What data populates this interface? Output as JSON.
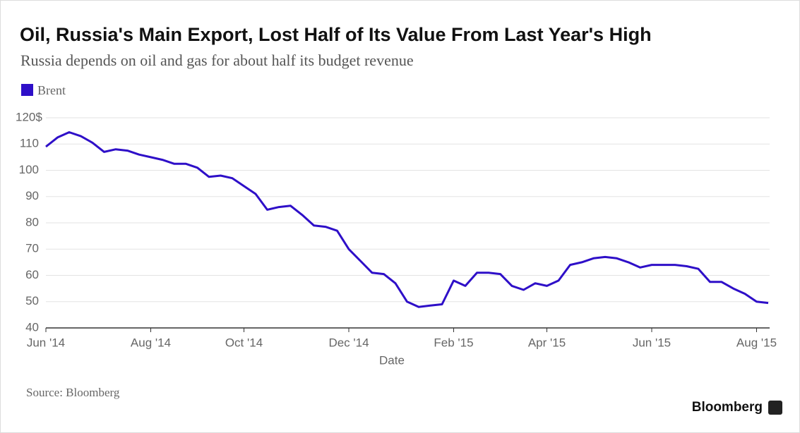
{
  "chart_data": {
    "type": "line",
    "title": "Oil, Russia's Main Export, Lost Half of Its Value From Last Year's High",
    "subtitle": "Russia depends on oil and gas for about half its budget revenue",
    "x_label": "Date",
    "source": "Source: Bloomberg",
    "brand": "Bloomberg",
    "categories": [
      "Jun '14",
      null,
      null,
      null,
      null,
      null,
      null,
      null,
      null,
      "Aug '14",
      null,
      null,
      null,
      null,
      null,
      null,
      null,
      "Oct '14",
      null,
      null,
      null,
      null,
      null,
      null,
      null,
      null,
      "Dec '14",
      null,
      null,
      null,
      null,
      null,
      null,
      null,
      null,
      "Feb '15",
      null,
      null,
      null,
      null,
      null,
      null,
      null,
      "Apr '15",
      null,
      null,
      null,
      null,
      null,
      null,
      null,
      null,
      "Jun '15",
      null,
      null,
      null,
      null,
      null,
      null,
      null,
      null,
      "Aug '15",
      null
    ],
    "series": [
      {
        "name": "Brent",
        "color": "#2e0fc8",
        "values": [
          109,
          112.5,
          114.5,
          113,
          110.5,
          107,
          108,
          107.5,
          106,
          105,
          104,
          102.5,
          102.5,
          101,
          97.5,
          98,
          97,
          94,
          91,
          85,
          86,
          86.5,
          83,
          79,
          78.5,
          77,
          70,
          65.5,
          61,
          60.5,
          57,
          50,
          48,
          48.5,
          49,
          58,
          56,
          61,
          61,
          60.5,
          56,
          54.5,
          57,
          56,
          58,
          64,
          65,
          66.5,
          67,
          66.5,
          65,
          63,
          64,
          64,
          64,
          63.5,
          62.5,
          57.5,
          57.5,
          55,
          53,
          50,
          49.5
        ]
      }
    ],
    "ylim": [
      40,
      120
    ],
    "yticks": [
      40,
      50,
      60,
      70,
      80,
      90,
      100,
      110,
      {
        "value": 120,
        "label": "120$"
      }
    ],
    "grid": true
  }
}
